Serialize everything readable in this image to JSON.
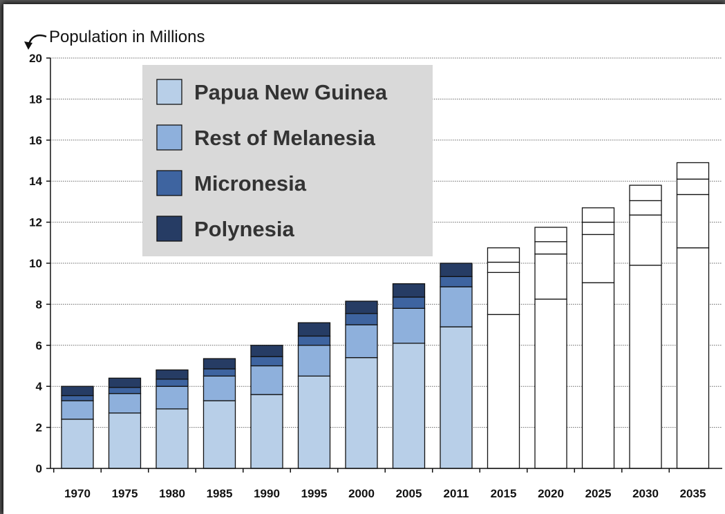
{
  "chart_data": {
    "type": "bar",
    "stacked": true,
    "ylabel": "Population in Millions",
    "ylim": [
      0,
      20
    ],
    "yticks": [
      0,
      2,
      4,
      6,
      8,
      10,
      12,
      14,
      16,
      18,
      20
    ],
    "grid": true,
    "legend_position": "top-left",
    "categories": [
      "1970",
      "1975",
      "1980",
      "1985",
      "1990",
      "1995",
      "2000",
      "2005",
      "2011",
      "2015",
      "2020",
      "2025",
      "2030",
      "2035"
    ],
    "projected_from": "2015",
    "series": [
      {
        "name": "Papua New Guinea",
        "color": "#b8cfe8",
        "values": [
          2.4,
          2.7,
          2.9,
          3.3,
          3.6,
          4.5,
          5.4,
          6.1,
          6.9,
          7.5,
          8.25,
          9.05,
          9.9,
          10.75
        ]
      },
      {
        "name": "Rest of Melanesia",
        "color": "#8eb0dc",
        "values": [
          0.9,
          0.95,
          1.1,
          1.2,
          1.4,
          1.5,
          1.6,
          1.7,
          1.95,
          2.05,
          2.2,
          2.35,
          2.45,
          2.6
        ]
      },
      {
        "name": "Micronesia",
        "color": "#3e64a0",
        "values": [
          0.25,
          0.3,
          0.35,
          0.35,
          0.45,
          0.45,
          0.55,
          0.55,
          0.5,
          0.5,
          0.6,
          0.6,
          0.7,
          0.75
        ]
      },
      {
        "name": "Polynesia",
        "color": "#263c64",
        "values": [
          0.45,
          0.45,
          0.45,
          0.5,
          0.55,
          0.65,
          0.6,
          0.65,
          0.65,
          0.7,
          0.7,
          0.7,
          0.75,
          0.8
        ]
      }
    ]
  }
}
